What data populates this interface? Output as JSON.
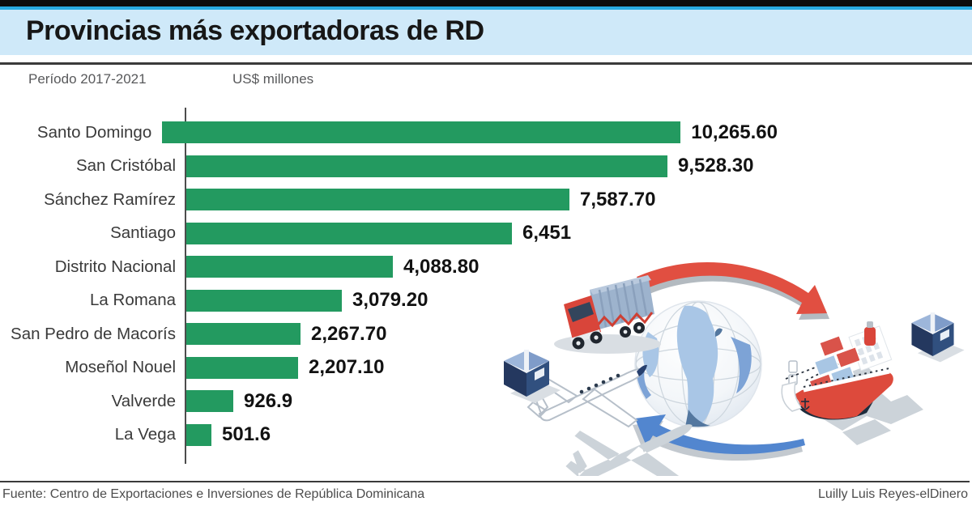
{
  "header": {
    "title": "Provincias más exportadoras de RD",
    "period": "Período 2017-2021",
    "unit": "US$ millones"
  },
  "chart_data": {
    "type": "bar",
    "orientation": "horizontal",
    "title": "Provincias más exportadoras de RD",
    "subtitle": "Período 2017-2021",
    "unit": "US$ millones",
    "categories": [
      "Santo Domingo",
      "San Cristóbal",
      "Sánchez Ramírez",
      "Santiago",
      "Distrito Nacional",
      "La Romana",
      "San Pedro de Macorís",
      "Moseñol Nouel",
      "Valverde",
      "La Vega"
    ],
    "values": [
      10265.6,
      9528.3,
      7587.7,
      6451,
      4088.8,
      3079.2,
      2267.7,
      2207.1,
      926.9,
      501.6
    ],
    "value_labels": [
      "10,265.60",
      "9,528.30",
      "7,587.70",
      "6,451",
      "4,088.80",
      "3,079.20",
      "2,267.70",
      "2,207.10",
      "926.9",
      "501.6"
    ],
    "xlim": [
      0,
      10265.6
    ],
    "bar_color": "#239a60",
    "grid": false,
    "legend": "none"
  },
  "footer": {
    "source": "Fuente: Centro de Exportaciones e Inversiones de República Dominicana",
    "credit": "Luilly Luis Reyes-elDinero"
  },
  "colors": {
    "top_bar": "#0d0d0d",
    "cyan_strip": "#29abe2",
    "title_band": "#cfe9f9",
    "bar_green": "#239a60",
    "arrow_red": "#e14f41",
    "arrow_blue": "#5286cf",
    "box_navy": "#24385f",
    "globe_continent": "#a9c6e6"
  },
  "illustration": {
    "icons": [
      "globe-icon",
      "truck-icon",
      "airplane-icon",
      "cargo-ship-icon",
      "box-icon",
      "red-arrow-icon",
      "blue-arrow-icon"
    ]
  }
}
